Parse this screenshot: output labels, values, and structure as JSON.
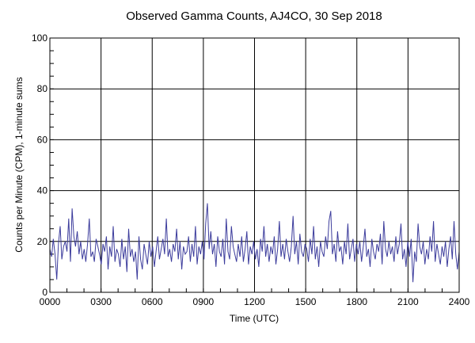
{
  "chart_data": {
    "type": "line",
    "title": "Observed Gamma Counts, AJ4CO, 30 Sep 2018",
    "xlabel": "Time (UTC)",
    "ylabel": "Counts per Minute (CPM), 1-minute sums",
    "x_range": [
      "0000",
      "2400"
    ],
    "xlim_hours": [
      0,
      24
    ],
    "ylim": [
      0,
      100
    ],
    "x_ticks": [
      "0000",
      "0300",
      "0600",
      "0900",
      "1200",
      "1500",
      "1800",
      "2100",
      "2400"
    ],
    "y_ticks": [
      "0",
      "20",
      "40",
      "60",
      "80",
      "100"
    ],
    "grid": true,
    "line_color": "#3c3c9c",
    "series": [
      {
        "values": [
          17,
          14,
          21,
          15,
          5,
          19,
          26,
          13,
          18,
          20,
          16,
          29,
          12,
          33,
          22,
          18,
          24,
          15,
          20,
          13,
          17,
          12,
          19,
          29,
          14,
          16,
          12,
          21,
          18,
          15,
          11,
          19,
          16,
          22,
          9,
          18,
          14,
          26,
          12,
          17,
          15,
          10,
          21,
          13,
          18,
          8,
          25,
          14,
          17,
          12,
          16,
          5,
          22,
          13,
          9,
          19,
          15,
          11,
          20,
          14,
          18,
          10,
          16,
          22,
          13,
          17,
          21,
          15,
          29,
          14,
          17,
          12,
          19,
          16,
          25,
          13,
          20,
          9,
          18,
          15,
          16,
          22,
          12,
          19,
          14,
          26,
          11,
          18,
          15,
          20,
          13,
          27,
          35,
          17,
          24,
          15,
          19,
          10,
          22,
          16,
          14,
          21,
          11,
          29,
          16,
          13,
          26,
          18,
          15,
          12,
          19,
          14,
          22,
          12,
          17,
          24,
          11,
          18,
          15,
          20,
          13,
          17,
          10,
          21,
          16,
          26,
          14,
          19,
          12,
          18,
          15,
          22,
          11,
          17,
          28,
          14,
          19,
          13,
          21,
          16,
          12,
          18,
          30,
          15,
          20,
          11,
          23,
          16,
          14,
          19,
          17,
          12,
          21,
          15,
          26,
          13,
          18,
          10,
          20,
          16,
          14,
          22,
          17,
          28,
          32,
          15,
          19,
          12,
          24,
          16,
          18,
          11,
          20,
          15,
          27,
          13,
          17,
          21,
          12,
          19,
          15,
          20,
          12,
          18,
          25,
          14,
          17,
          10,
          21,
          16,
          13,
          19,
          16,
          23,
          11,
          28,
          17,
          14,
          20,
          15,
          18,
          12,
          22,
          15,
          19,
          27,
          13,
          17,
          10,
          20,
          14,
          21,
          4,
          16,
          12,
          27,
          18,
          15,
          20,
          11,
          17,
          13,
          22,
          16,
          28,
          12,
          19,
          15,
          11,
          18,
          14,
          20,
          10,
          17,
          22,
          13,
          28,
          15,
          9,
          16
        ]
      }
    ]
  }
}
